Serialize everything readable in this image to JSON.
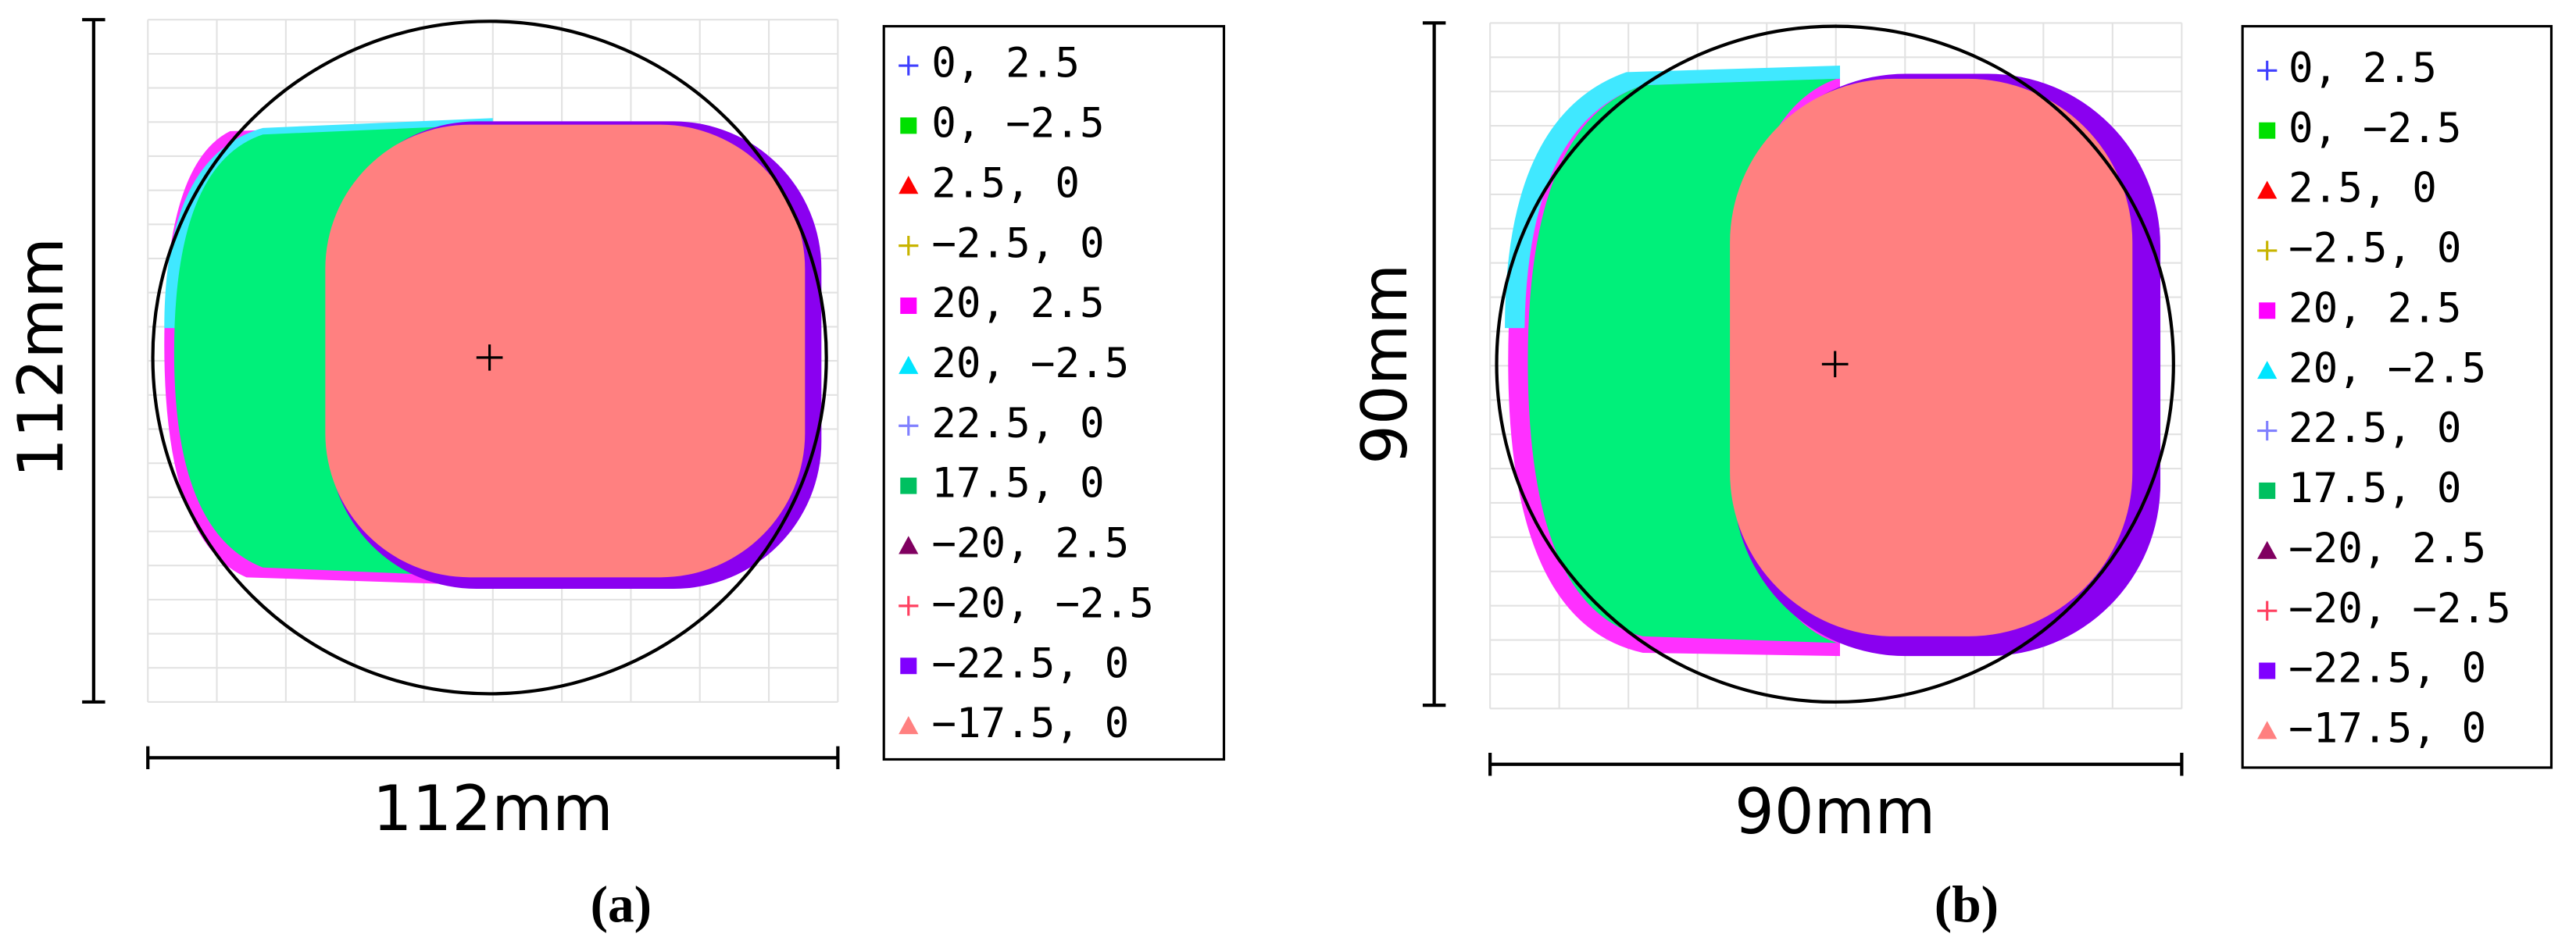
{
  "panels": [
    {
      "height_label": "112mm",
      "width_label": "112mm",
      "caption": "(a)",
      "legend": [
        {
          "label": "0, 2.5",
          "color": "#3f3fff",
          "marker": "plus"
        },
        {
          "label": "0, −2.5",
          "color": "#00e000",
          "marker": "square"
        },
        {
          "label": "2.5, 0",
          "color": "#ff0000",
          "marker": "triangle"
        },
        {
          "label": "−2.5, 0",
          "color": "#c8b400",
          "marker": "plus"
        },
        {
          "label": "20, 2.5",
          "color": "#ff00ff",
          "marker": "square"
        },
        {
          "label": "20, −2.5",
          "color": "#00e5ff",
          "marker": "triangle"
        },
        {
          "label": "22.5, 0",
          "color": "#8080ff",
          "marker": "plus"
        },
        {
          "label": "17.5, 0",
          "color": "#00c060",
          "marker": "square"
        },
        {
          "label": "−20, 2.5",
          "color": "#800060",
          "marker": "triangle"
        },
        {
          "label": "−20, −2.5",
          "color": "#ff4060",
          "marker": "plus"
        },
        {
          "label": "−22.5, 0",
          "color": "#8000ff",
          "marker": "square"
        },
        {
          "label": "−17.5, 0",
          "color": "#ff8080",
          "marker": "triangle"
        }
      ]
    },
    {
      "height_label": "90mm",
      "width_label": "90mm",
      "caption": "(b)",
      "legend": [
        {
          "label": "0, 2.5",
          "color": "#3f3fff",
          "marker": "plus"
        },
        {
          "label": "0, −2.5",
          "color": "#00e000",
          "marker": "square"
        },
        {
          "label": "2.5, 0",
          "color": "#ff0000",
          "marker": "triangle"
        },
        {
          "label": "−2.5, 0",
          "color": "#c8b400",
          "marker": "plus"
        },
        {
          "label": "20, 2.5",
          "color": "#ff00ff",
          "marker": "square"
        },
        {
          "label": "20, −2.5",
          "color": "#00e5ff",
          "marker": "triangle"
        },
        {
          "label": "22.5, 0",
          "color": "#8080ff",
          "marker": "plus"
        },
        {
          "label": "17.5, 0",
          "color": "#00c060",
          "marker": "square"
        },
        {
          "label": "−20, 2.5",
          "color": "#800060",
          "marker": "triangle"
        },
        {
          "label": "−20, −2.5",
          "color": "#ff4060",
          "marker": "plus"
        },
        {
          "label": "−22.5, 0",
          "color": "#8000ff",
          "marker": "square"
        },
        {
          "label": "−17.5, 0",
          "color": "#ff8080",
          "marker": "triangle"
        }
      ]
    }
  ]
}
